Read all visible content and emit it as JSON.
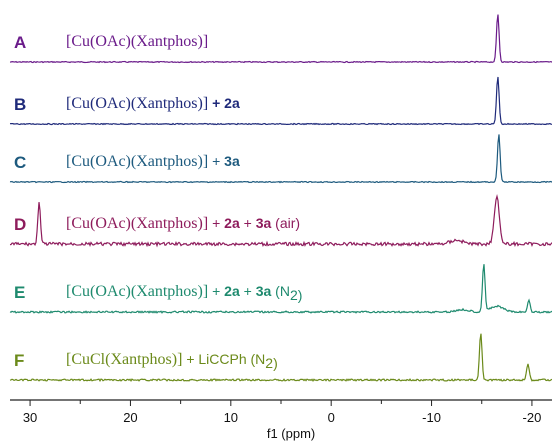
{
  "chart_data": {
    "type": "line",
    "xlabel": "f1 (ppm)",
    "x_reversed": true,
    "xlim": [
      32,
      -22
    ],
    "xticks": [
      30,
      20,
      10,
      0,
      -10,
      -20
    ],
    "xtick_labels": [
      "30",
      "20",
      "10",
      "0",
      "-10",
      "-20"
    ],
    "grid": false,
    "series": [
      {
        "letter": "A",
        "color": "#6a1b8a",
        "name": [
          {
            "t": "[Cu(OAc)(Xantphos)]",
            "s": "cmpd"
          }
        ],
        "peaks": [
          {
            "ppm": -16.6,
            "height": 1.0
          }
        ]
      },
      {
        "letter": "B",
        "color": "#1f2a7a",
        "name": [
          {
            "t": "[Cu(OAc)(Xantphos)]",
            "s": "cmpd"
          },
          {
            "t": " + ",
            "s": "addb"
          },
          {
            "t": "2a",
            "s": "addb"
          }
        ],
        "peaks": [
          {
            "ppm": -16.6,
            "height": 1.0
          }
        ]
      },
      {
        "letter": "C",
        "color": "#1d5a7e",
        "name": [
          {
            "t": "[Cu(OAc)(Xantphos)]",
            "s": "cmpd"
          },
          {
            "t": " + ",
            "s": "add"
          },
          {
            "t": "3a",
            "s": "addb"
          }
        ],
        "peaks": [
          {
            "ppm": -16.7,
            "height": 1.0
          }
        ]
      },
      {
        "letter": "D",
        "color": "#8e1c5c",
        "name": [
          {
            "t": "[Cu(OAc)(Xantphos)]",
            "s": "cmpd"
          },
          {
            "t": " + ",
            "s": "add"
          },
          {
            "t": "2a",
            "s": "addb"
          },
          {
            "t": " + ",
            "s": "add"
          },
          {
            "t": "3a",
            "s": "addb"
          },
          {
            "t": " (air)",
            "s": "add"
          }
        ],
        "peaks": [
          {
            "ppm": 29.1,
            "height": 0.9
          },
          {
            "ppm": -16.5,
            "height": 1.0
          },
          {
            "ppm": -12.5,
            "height": 0.08
          }
        ]
      },
      {
        "letter": "E",
        "color": "#1e8a6e",
        "name": [
          {
            "t": "[Cu(OAc)(Xantphos)]",
            "s": "cmpd"
          },
          {
            "t": " + ",
            "s": "add"
          },
          {
            "t": "2a",
            "s": "addb"
          },
          {
            "t": " + ",
            "s": "add"
          },
          {
            "t": "3a",
            "s": "addb"
          },
          {
            "t": " (N",
            "s": "add"
          },
          {
            "t": "2",
            "s": "sub"
          },
          {
            "t": ")",
            "s": "add"
          }
        ],
        "peaks": [
          {
            "ppm": -15.2,
            "height": 1.0
          },
          {
            "ppm": -16.5,
            "height": 0.12
          },
          {
            "ppm": -19.7,
            "height": 0.25
          },
          {
            "ppm": -13.1,
            "height": 0.05
          }
        ]
      },
      {
        "letter": "F",
        "color": "#6b8a1a",
        "name": [
          {
            "t": "[CuCl(Xantphos)]",
            "s": "cmpd"
          },
          {
            "t": " + LiCCPh (N",
            "s": "add"
          },
          {
            "t": "2",
            "s": "sub"
          },
          {
            "t": ")",
            "s": "add"
          }
        ],
        "peaks": [
          {
            "ppm": -14.9,
            "height": 1.0
          },
          {
            "ppm": -19.6,
            "height": 0.35
          }
        ]
      }
    ]
  }
}
